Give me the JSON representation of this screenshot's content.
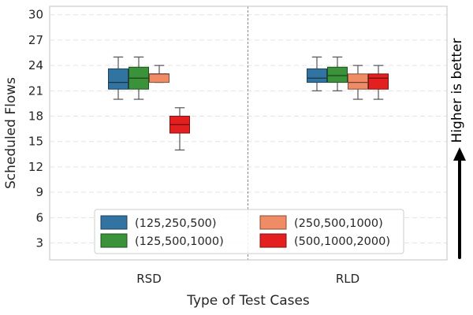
{
  "chart_data": {
    "type": "box",
    "xlabel": "Type of Test Cases",
    "ylabel": "Scheduled Flows",
    "categories": [
      "RSD",
      "RLD"
    ],
    "ylim": [
      1,
      31
    ],
    "yticks": [
      3,
      6,
      9,
      12,
      15,
      18,
      21,
      24,
      27,
      30
    ],
    "grid": true,
    "legend": "bottom-center",
    "legend_columns": 2,
    "annotation": "Higher is better",
    "series": [
      {
        "name": "(125,250,500)",
        "color": "#3274a1",
        "boxes": [
          {
            "category": "RSD",
            "whisker_low": 20,
            "q1": 21.2,
            "median": 22,
            "q3": 23.6,
            "whisker_high": 25
          },
          {
            "category": "RLD",
            "whisker_low": 21,
            "q1": 22,
            "median": 22.5,
            "q3": 23.6,
            "whisker_high": 25
          }
        ]
      },
      {
        "name": "(125,500,1000)",
        "color": "#3a923a",
        "boxes": [
          {
            "category": "RSD",
            "whisker_low": 20,
            "q1": 21.2,
            "median": 22.5,
            "q3": 23.8,
            "whisker_high": 25
          },
          {
            "category": "RLD",
            "whisker_low": 21,
            "q1": 22,
            "median": 22.8,
            "q3": 23.8,
            "whisker_high": 25
          }
        ]
      },
      {
        "name": "(250,500,1000)",
        "color": "#ef8c66",
        "boxes": [
          {
            "category": "RSD",
            "whisker_low": 22,
            "q1": 22,
            "median": 23,
            "q3": 23,
            "whisker_high": 24
          },
          {
            "category": "RLD",
            "whisker_low": 20,
            "q1": 21.2,
            "median": 22,
            "q3": 23,
            "whisker_high": 24
          }
        ]
      },
      {
        "name": "(500,1000,2000)",
        "color": "#e3201f",
        "boxes": [
          {
            "category": "RSD",
            "whisker_low": 14,
            "q1": 16,
            "median": 17,
            "q3": 18,
            "whisker_high": 19
          },
          {
            "category": "RLD",
            "whisker_low": 20,
            "q1": 21.2,
            "median": 22.5,
            "q3": 23,
            "whisker_high": 24
          }
        ]
      }
    ]
  }
}
